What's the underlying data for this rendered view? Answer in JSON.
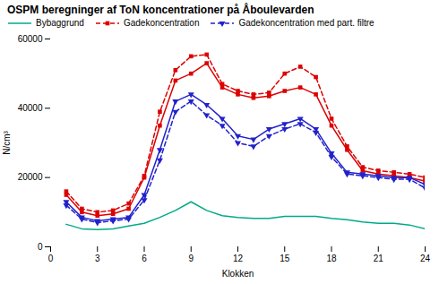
{
  "chart_data": {
    "type": "line",
    "title": "OSPM beregninger af ToN koncentrationer på Åboulevarden",
    "xlabel": "Klokken",
    "ylabel": "N/cm³",
    "x": [
      1,
      2,
      3,
      4,
      5,
      6,
      7,
      8,
      9,
      10,
      11,
      12,
      13,
      14,
      15,
      16,
      17,
      18,
      19,
      20,
      21,
      22,
      23,
      24
    ],
    "series": [
      {
        "name": "Bybaggrund",
        "color": "#00AA88",
        "line_style": "solid",
        "values": [
          6500,
          5200,
          5000,
          5200,
          6000,
          6800,
          8500,
          10500,
          13000,
          10500,
          9000,
          8500,
          8200,
          8200,
          8800,
          8800,
          8800,
          8200,
          7800,
          7200,
          6800,
          6800,
          6300,
          5200
        ]
      },
      {
        "name": "Gadekoncentration",
        "color": "#DD0000",
        "line_style": "solid",
        "marker": "square",
        "values": [
          15000,
          10000,
          9000,
          9500,
          11000,
          20000,
          35000,
          48000,
          50000,
          53000,
          46000,
          44000,
          43000,
          43500,
          45000,
          46000,
          44000,
          35000,
          28000,
          22000,
          21000,
          20500,
          20000,
          19000
        ]
      },
      {
        "name": "Gadekoncentration",
        "color": "#DD0000",
        "line_style": "dashed",
        "marker": "square",
        "values": [
          16000,
          11000,
          10000,
          10500,
          12500,
          20500,
          39000,
          51000,
          55000,
          55500,
          47000,
          45000,
          44000,
          44500,
          50000,
          52000,
          49000,
          37000,
          29000,
          23000,
          22000,
          21500,
          21000,
          20000
        ]
      },
      {
        "name": "Gadekoncentration med part. filtre",
        "color": "#2222CC",
        "line_style": "solid",
        "marker": "triangle-down",
        "values": [
          13000,
          8500,
          7500,
          8000,
          8500,
          15000,
          28000,
          42000,
          44000,
          41000,
          37000,
          32000,
          31000,
          34000,
          35500,
          37000,
          34000,
          27000,
          21500,
          21000,
          20500,
          20000,
          20000,
          18000
        ]
      },
      {
        "name": "Gadekoncentration med part. filtre",
        "color": "#2222CC",
        "line_style": "dashed",
        "marker": "triangle-down",
        "values": [
          12000,
          8000,
          7000,
          7500,
          8000,
          13500,
          25000,
          39000,
          42000,
          38000,
          35000,
          30000,
          29000,
          32000,
          34000,
          35500,
          33000,
          26000,
          21000,
          20500,
          20000,
          19500,
          19500,
          17000
        ]
      }
    ],
    "xlim": [
      0,
      24
    ],
    "ylim": [
      0,
      60000
    ],
    "xticks": [
      0,
      3,
      6,
      9,
      12,
      15,
      18,
      21,
      24
    ],
    "yticks": [
      0,
      20000,
      40000,
      60000
    ],
    "grid": false,
    "legend": "top"
  }
}
